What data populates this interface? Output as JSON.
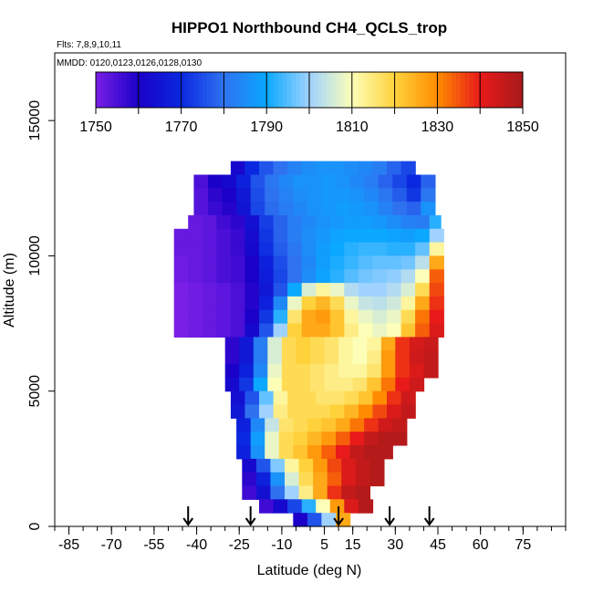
{
  "chart_data": {
    "type": "heatmap",
    "title": "HIPPO1 Northbound CH4_QCLS_trop",
    "flights_note": "Flts: 7,8,9,10,11",
    "dates_note": "MMDD: 0120,0123,0126,0128,0130",
    "xlabel": "Latitude (deg N)",
    "ylabel": "Altitude (m)",
    "xlim": [
      -90,
      90
    ],
    "ylim": [
      0,
      17500
    ],
    "x_ticks": [
      -85,
      -70,
      -55,
      -40,
      -25,
      -10,
      5,
      15,
      30,
      45,
      60,
      75
    ],
    "x_minor_step": 5,
    "y_ticks": [
      0,
      5000,
      10000,
      15000
    ],
    "colorbar": {
      "min": 1750,
      "max": 1850,
      "step": 10,
      "tick_labels": [
        1750,
        1770,
        1790,
        1810,
        1830,
        1850
      ],
      "colors": [
        "#7a1fe6",
        "#1a00c8",
        "#0a28e0",
        "#2f72f0",
        "#0aa8ff",
        "#9fd2ff",
        "#fdffb8",
        "#ffd23c",
        "#ff8c00",
        "#e81a1a",
        "#a81a1a"
      ]
    },
    "arrow_latitudes": [
      -43,
      -21,
      10,
      28,
      42
    ],
    "z_units": "ppb",
    "estimated_rows": [
      {
        "alt": 13250,
        "lat_start": -28,
        "lat_end": 36,
        "values": [
          1762,
          1770,
          1776,
          1780,
          1783,
          1785,
          1786,
          1786,
          1785,
          1784,
          1782,
          1778,
          1774
        ]
      },
      {
        "alt": 12750,
        "lat_start": -41,
        "lat_end": 41,
        "values": [
          1755,
          1760,
          1762,
          1768,
          1776,
          1781,
          1784,
          1786,
          1786,
          1787,
          1786,
          1784,
          1782,
          1778,
          1774,
          1770,
          1778
        ]
      },
      {
        "alt": 12250,
        "lat_start": -41,
        "lat_end": 41,
        "values": [
          1754,
          1758,
          1760,
          1766,
          1775,
          1780,
          1783,
          1785,
          1786,
          1787,
          1787,
          1786,
          1784,
          1781,
          1777,
          1772,
          1781
        ]
      },
      {
        "alt": 11750,
        "lat_start": -41,
        "lat_end": 41,
        "values": [
          1754,
          1757,
          1759,
          1765,
          1774,
          1779,
          1782,
          1784,
          1786,
          1787,
          1788,
          1787,
          1786,
          1783,
          1780,
          1778,
          1786
        ]
      },
      {
        "alt": 11250,
        "lat_start": -43,
        "lat_end": 41,
        "values": [
          1752,
          1753,
          1756,
          1758,
          1764,
          1773,
          1778,
          1782,
          1784,
          1786,
          1787,
          1788,
          1788,
          1787,
          1785,
          1783,
          1782,
          1792
        ]
      },
      {
        "alt": 10750,
        "lat_start": -48,
        "lat_end": 43,
        "values": [
          1752,
          1752,
          1753,
          1755,
          1757,
          1763,
          1772,
          1778,
          1782,
          1785,
          1787,
          1789,
          1790,
          1790,
          1790,
          1789,
          1788,
          1790,
          1800
        ]
      },
      {
        "alt": 10250,
        "lat_start": -48,
        "lat_end": 43,
        "values": [
          1752,
          1752,
          1753,
          1755,
          1757,
          1762,
          1771,
          1777,
          1781,
          1785,
          1788,
          1790,
          1792,
          1793,
          1793,
          1792,
          1792,
          1796,
          1812
        ]
      },
      {
        "alt": 9750,
        "lat_start": -48,
        "lat_end": 43,
        "values": [
          1751,
          1752,
          1753,
          1755,
          1756,
          1760,
          1768,
          1775,
          1780,
          1784,
          1788,
          1791,
          1793,
          1795,
          1796,
          1796,
          1797,
          1803,
          1826
        ]
      },
      {
        "alt": 9250,
        "lat_start": -48,
        "lat_end": 43,
        "values": [
          1751,
          1752,
          1753,
          1755,
          1756,
          1760,
          1767,
          1774,
          1780,
          1785,
          1789,
          1792,
          1795,
          1797,
          1798,
          1799,
          1802,
          1810,
          1834
        ]
      },
      {
        "alt": 8750,
        "lat_start": -48,
        "lat_end": 43,
        "values": [
          1750,
          1751,
          1752,
          1753,
          1755,
          1759,
          1766,
          1776,
          1790,
          1806,
          1812,
          1808,
          1802,
          1800,
          1800,
          1802,
          1806,
          1818,
          1836
        ]
      },
      {
        "alt": 8250,
        "lat_start": -48,
        "lat_end": 43,
        "values": [
          1750,
          1751,
          1752,
          1753,
          1755,
          1759,
          1768,
          1784,
          1808,
          1820,
          1824,
          1818,
          1808,
          1804,
          1803,
          1805,
          1812,
          1826,
          1838
        ]
      },
      {
        "alt": 7750,
        "lat_start": -48,
        "lat_end": 43,
        "values": [
          1750,
          1751,
          1752,
          1753,
          1755,
          1760,
          1772,
          1792,
          1816,
          1826,
          1828,
          1822,
          1812,
          1808,
          1806,
          1808,
          1818,
          1832,
          1840
        ]
      },
      {
        "alt": 7250,
        "lat_start": -48,
        "lat_end": 43,
        "values": [
          1750,
          1751,
          1752,
          1753,
          1755,
          1762,
          1776,
          1800,
          1820,
          1826,
          1826,
          1822,
          1814,
          1810,
          1808,
          1810,
          1822,
          1834,
          1842
        ]
      },
      {
        "alt": 6750,
        "lat_start": -30,
        "lat_end": 41,
        "values": [
          1758,
          1766,
          1782,
          1806,
          1818,
          1820,
          1818,
          1816,
          1812,
          1810,
          1812,
          1826,
          1838,
          1843,
          1845
        ]
      },
      {
        "alt": 6250,
        "lat_start": -30,
        "lat_end": 41,
        "values": [
          1758,
          1766,
          1782,
          1806,
          1818,
          1820,
          1818,
          1816,
          1812,
          1810,
          1814,
          1828,
          1838,
          1844,
          1846
        ]
      },
      {
        "alt": 5750,
        "lat_start": -30,
        "lat_end": 41,
        "values": [
          1760,
          1768,
          1784,
          1808,
          1818,
          1818,
          1816,
          1814,
          1812,
          1812,
          1816,
          1828,
          1838,
          1842,
          1846
        ]
      },
      {
        "alt": 5250,
        "lat_start": -30,
        "lat_end": 36,
        "values": [
          1762,
          1772,
          1790,
          1810,
          1818,
          1818,
          1816,
          1814,
          1814,
          1816,
          1822,
          1832,
          1840,
          1844
        ]
      },
      {
        "alt": 4750,
        "lat_start": -28,
        "lat_end": 34,
        "values": [
          1764,
          1776,
          1796,
          1812,
          1818,
          1818,
          1816,
          1816,
          1818,
          1822,
          1830,
          1838,
          1844
        ]
      },
      {
        "alt": 4250,
        "lat_start": -28,
        "lat_end": 34,
        "values": [
          1766,
          1780,
          1800,
          1814,
          1818,
          1818,
          1818,
          1820,
          1824,
          1830,
          1836,
          1842,
          1846
        ]
      },
      {
        "alt": 3750,
        "lat_start": -26,
        "lat_end": 30,
        "values": [
          1768,
          1784,
          1804,
          1816,
          1818,
          1820,
          1822,
          1826,
          1832,
          1838,
          1844,
          1846
        ]
      },
      {
        "alt": 3250,
        "lat_start": -26,
        "lat_end": 30,
        "values": [
          1770,
          1788,
          1808,
          1818,
          1820,
          1824,
          1828,
          1834,
          1840,
          1846,
          1848,
          1848
        ]
      },
      {
        "alt": 2750,
        "lat_start": -26,
        "lat_end": 26,
        "values": [
          1768,
          1786,
          1808,
          1818,
          1822,
          1828,
          1834,
          1840,
          1846,
          1848,
          1848
        ]
      },
      {
        "alt": 2250,
        "lat_start": -24,
        "lat_end": 26,
        "values": [
          1762,
          1776,
          1798,
          1812,
          1820,
          1828,
          1836,
          1842,
          1846,
          1848
        ]
      },
      {
        "alt": 1750,
        "lat_start": -24,
        "lat_end": 24,
        "values": [
          1758,
          1768,
          1786,
          1806,
          1818,
          1826,
          1834,
          1842,
          1846,
          1848
        ]
      },
      {
        "alt": 1250,
        "lat_start": -24,
        "lat_end": 20,
        "values": [
          1756,
          1764,
          1780,
          1800,
          1814,
          1826,
          1838,
          1846,
          1848
        ]
      },
      {
        "alt": 750,
        "lat_start": -18,
        "lat_end": 18,
        "values": [
          1756,
          1762,
          1774,
          1792,
          1810,
          1828,
          1842,
          1848
        ]
      },
      {
        "alt": 250,
        "lat_start": -6,
        "lat_end": 12,
        "values": [
          1760,
          1776,
          1800,
          1826
        ]
      }
    ]
  }
}
